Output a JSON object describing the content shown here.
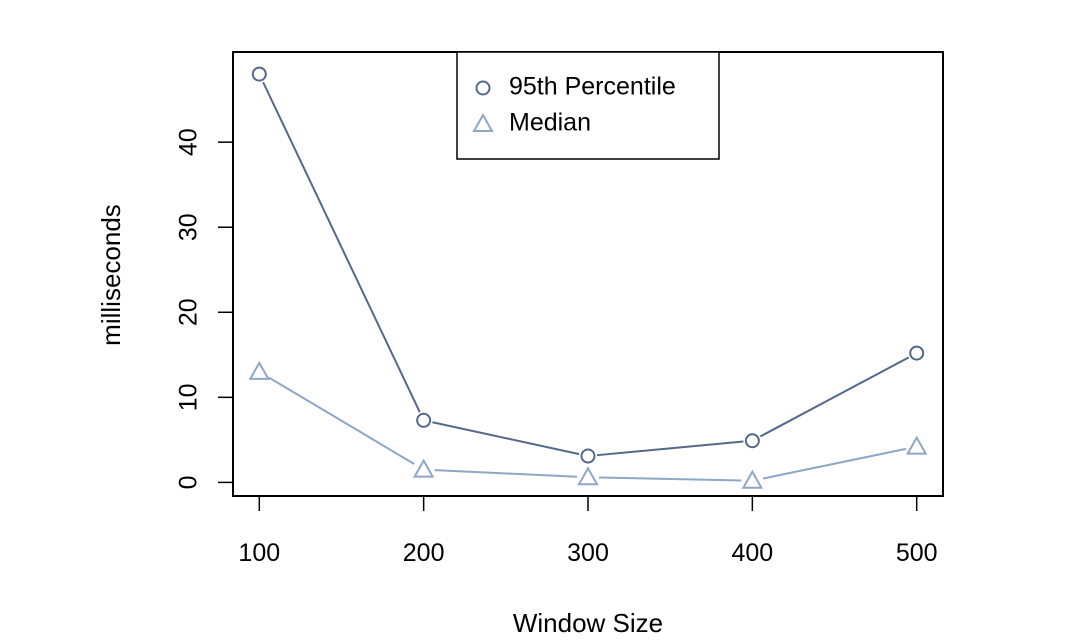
{
  "chart_data": {
    "type": "line",
    "title": "",
    "xlabel": "Window Size",
    "ylabel": "milliseconds",
    "x": [
      100,
      200,
      300,
      400,
      500
    ],
    "xlim": [
      84,
      516
    ],
    "ylim": [
      -1.6,
      50.6
    ],
    "x_ticks": [
      100,
      200,
      300,
      400,
      500
    ],
    "y_ticks": [
      0,
      10,
      20,
      30,
      40
    ],
    "grid": false,
    "legend": {
      "placement": "top-center"
    },
    "series": [
      {
        "name": "95th Percentile",
        "values": [
          48.0,
          7.3,
          3.1,
          4.9,
          15.2
        ],
        "color": "#54698a",
        "marker": "circle"
      },
      {
        "name": "Median",
        "values": [
          13.0,
          1.5,
          0.6,
          0.2,
          4.2
        ],
        "color": "#8ea7c8",
        "marker": "triangle"
      }
    ]
  }
}
